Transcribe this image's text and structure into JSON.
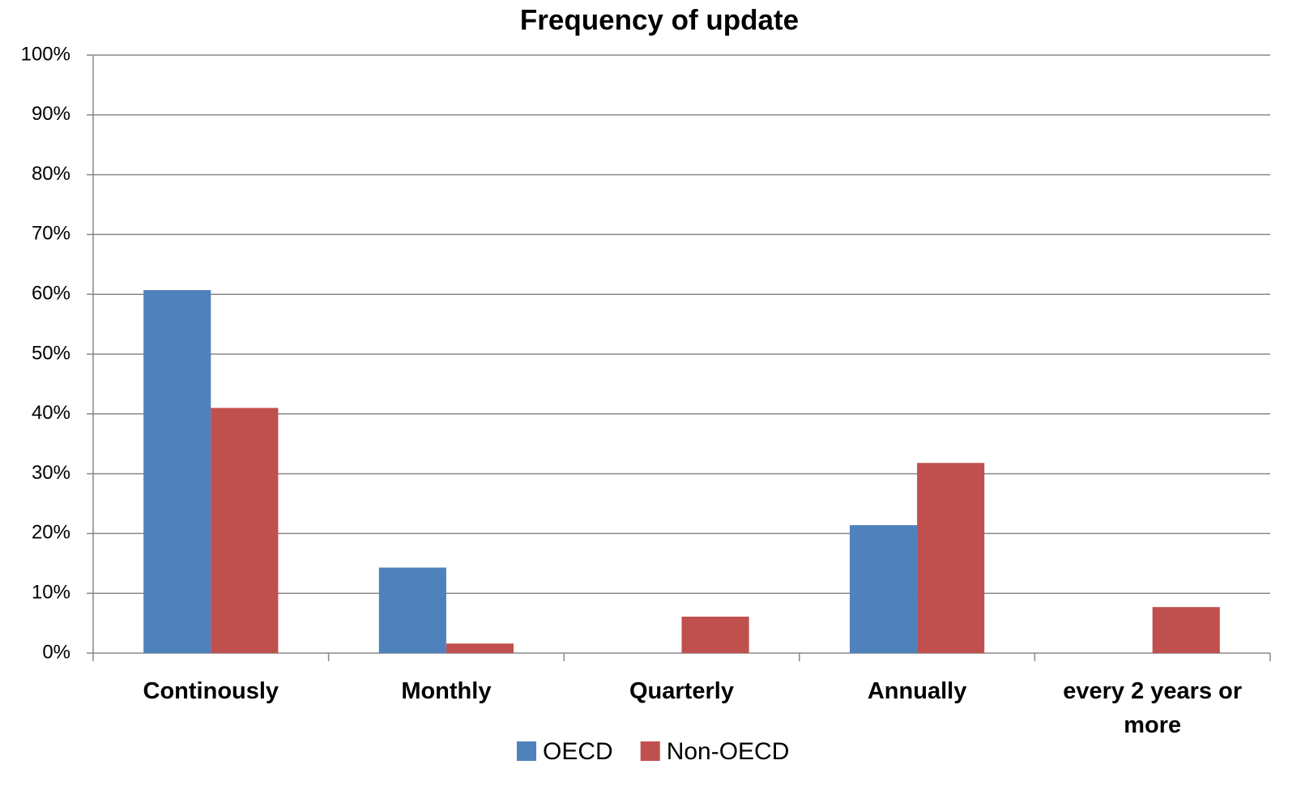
{
  "chart_data": {
    "type": "bar",
    "title": "Frequency of update",
    "categories": [
      "Continously",
      "Monthly",
      "Quarterly",
      "Annually",
      "every 2 years or more"
    ],
    "series": [
      {
        "name": "OECD",
        "color": "#4f81bd",
        "values": [
          60.7,
          14.3,
          0,
          21.4,
          0
        ]
      },
      {
        "name": "Non-OECD",
        "color": "#c0504d",
        "values": [
          41,
          1.6,
          6.1,
          31.8,
          7.7
        ]
      }
    ],
    "ylim": [
      0,
      100
    ],
    "yticks": [
      {
        "value": 0,
        "label": "0%"
      },
      {
        "value": 10,
        "label": "10%"
      },
      {
        "value": 20,
        "label": "20%"
      },
      {
        "value": 30,
        "label": "30%"
      },
      {
        "value": 40,
        "label": "40%"
      },
      {
        "value": 50,
        "label": "50%"
      },
      {
        "value": 60,
        "label": "60%"
      },
      {
        "value": 70,
        "label": "70%"
      },
      {
        "value": 80,
        "label": "80%"
      },
      {
        "value": 90,
        "label": "90%"
      },
      {
        "value": 100,
        "label": "100%"
      }
    ],
    "grid": true,
    "legend": "bottom"
  }
}
